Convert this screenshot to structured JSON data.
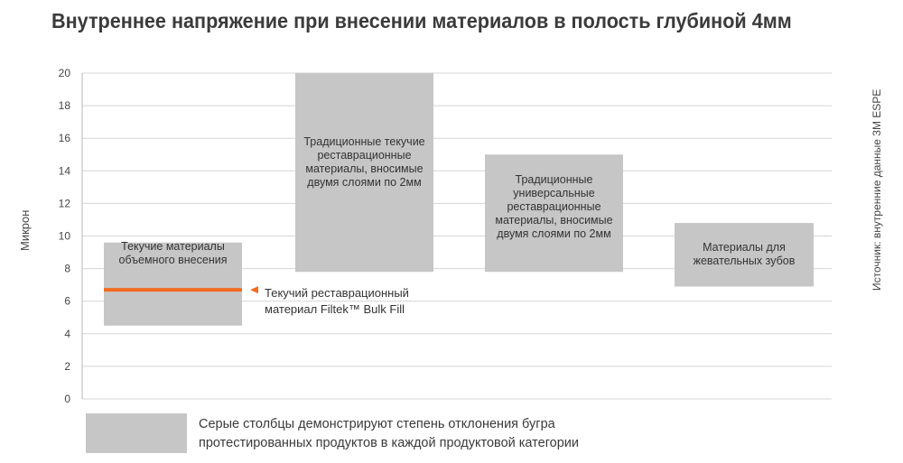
{
  "title": "Внутреннее напряжение при внесении материалов в полость глубиной 4мм",
  "source": "Источник: внутренние данные 3M  ESPE",
  "colors": {
    "bar_fill": "#c6c6c6",
    "highlight": "#f26b21",
    "grid": "#d4d4d4",
    "axis_text": "#444444"
  },
  "callout": {
    "line1": "Текучий реставрационный",
    "line2": "материал Filtek™  Bulk  Fill"
  },
  "legend": {
    "line1": "Серые столбцы демонстрируют степень отклонения бугра",
    "line2": "протестированных продуктов в каждой продуктовой категории",
    "icon": "double-arrow-vertical-icon"
  },
  "chart_data": {
    "type": "bar",
    "title": "Внутреннее напряжение при внесении материалов в полость глубиной 4мм",
    "ylabel": "Микрон",
    "xlabel": "",
    "ylim": [
      0,
      20
    ],
    "yticks": [
      0,
      2,
      4,
      6,
      8,
      10,
      12,
      14,
      16,
      18,
      20
    ],
    "grid": true,
    "bar_style": "floating-range",
    "bars": [
      {
        "label": "Текучие материалы объемного внесения",
        "low": 4.5,
        "high": 9.6,
        "highlight_value": 6.7
      },
      {
        "label": "Традиционные текучие реставрационные материалы, вносимые двумя слоями по 2мм",
        "low": 7.8,
        "high": 20.0
      },
      {
        "label": "Традиционные универсальные реставрационные материалы, вносимые двумя слоями по 2мм",
        "low": 7.8,
        "high": 15.0
      },
      {
        "label": "Материалы  для жевательных зубов",
        "low": 6.9,
        "high": 10.8
      }
    ]
  }
}
